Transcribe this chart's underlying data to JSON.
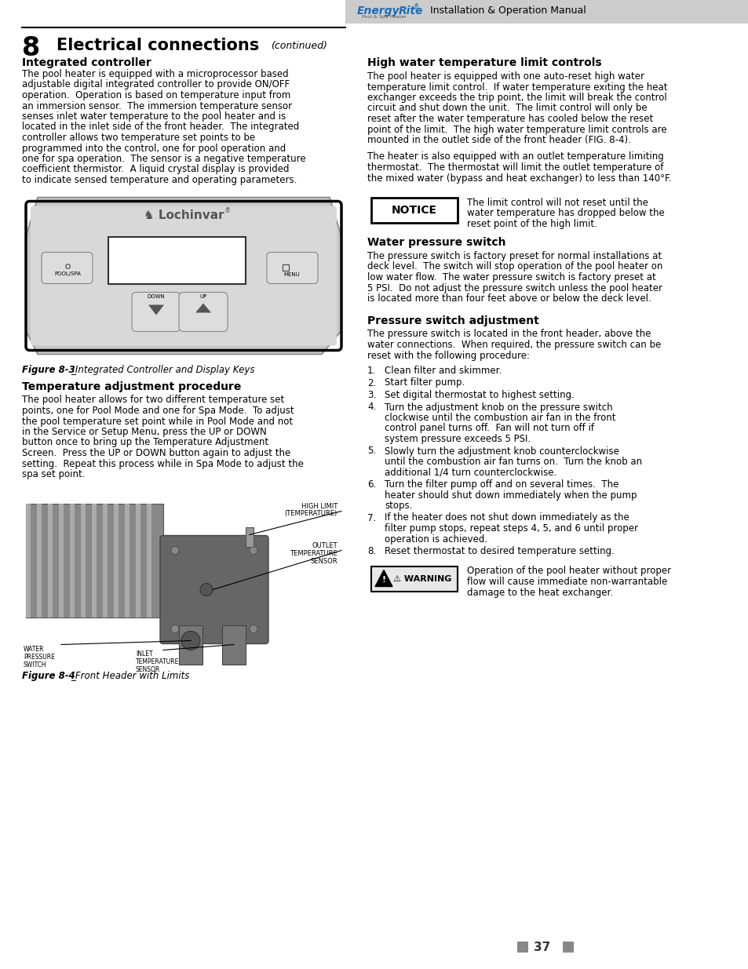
{
  "page_num": "37",
  "header_text": "Installation & Operation Manual",
  "chapter_num": "8",
  "chapter_title": "Electrical connections",
  "chapter_subtitle": "(continued)",
  "section1_title": "Integrated controller",
  "section1_body_lines": [
    "The pool heater is equipped with a microprocessor based",
    "adjustable digital integrated controller to provide ON/OFF",
    "operation.  Operation is based on temperature input from",
    "an immersion sensor.  The immersion temperature sensor",
    "senses inlet water temperature to the pool heater and is",
    "located in the inlet side of the front header.  The integrated",
    "controller allows two temperature set points to be",
    "programmed into the control, one for pool operation and",
    "one for spa operation.  The sensor is a negative temperature",
    "coefficient thermistor.  A liquid crystal display is provided",
    "to indicate sensed temperature and operating parameters."
  ],
  "fig3_caption_bold": "Figure 8-3",
  "fig3_caption_italic": "_Integrated Controller and Display Keys",
  "section2_title": "Temperature adjustment procedure",
  "section2_body_lines": [
    "The pool heater allows for two different temperature set",
    "points, one for Pool Mode and one for Spa Mode.  To adjust",
    "the pool temperature set point while in Pool Mode and not",
    "in the Service or Setup Menu, press the UP or DOWN",
    "button once to bring up the Temperature Adjustment",
    "Screen.  Press the UP or DOWN button again to adjust the",
    "setting.  Repeat this process while in Spa Mode to adjust the",
    "spa set point."
  ],
  "fig4_caption_bold": "Figure 8-4",
  "fig4_caption_italic": "_Front Header with Limits",
  "section3_title": "High water temperature limit controls",
  "section3_body1_lines": [
    "The pool heater is equipped with one auto-reset high water",
    "temperature limit control.  If water temperature exiting the heat",
    "exchanger exceeds the trip point, the limit will break the control",
    "circuit and shut down the unit.  The limit control will only be",
    "reset after the water temperature has cooled below the reset",
    "point of the limit.  The high water temperature limit controls are",
    "mounted in the outlet side of the front header (FIG. 8-4)."
  ],
  "section3_body2_lines": [
    "The heater is also equipped with an outlet temperature limiting",
    "thermostat.  The thermostat will limit the outlet temperature of",
    "the mixed water (bypass and heat exchanger) to less than 140°F."
  ],
  "notice_label": "NOTICE",
  "notice_text_lines": [
    "The limit control will not reset until the",
    "water temperature has dropped below the",
    "reset point of the high limit."
  ],
  "section4_title": "Water pressure switch",
  "section4_body_lines": [
    "The pressure switch is factory preset for normal installations at",
    "deck level.  The switch will stop operation of the pool heater on",
    "low water flow.  The water pressure switch is factory preset at",
    "5 PSI.  Do not adjust the pressure switch unless the pool heater",
    "is located more than four feet above or below the deck level."
  ],
  "section5_title": "Pressure switch adjustment",
  "section5_body_lines": [
    "The pressure switch is located in the front header, above the",
    "water connections.  When required, the pressure switch can be",
    "reset with the following procedure:"
  ],
  "steps": [
    [
      "Clean filter and skimmer."
    ],
    [
      "Start filter pump."
    ],
    [
      "Set digital thermostat to highest setting."
    ],
    [
      "Turn the adjustment knob on the pressure switch",
      "clockwise until the combustion air fan in the front",
      "control panel turns off.  Fan will not turn off if",
      "system pressure exceeds 5 PSI."
    ],
    [
      "Slowly turn the adjustment knob counterclockwise",
      "until the combustion air fan turns on.  Turn the knob an",
      "additional 1/4 turn counterclockwise."
    ],
    [
      "Turn the filter pump off and on several times.  The",
      "heater should shut down immediately when the pump",
      "stops."
    ],
    [
      "If the heater does not shut down immediately as the",
      "filter pump stops, repeat steps 4, 5, and 6 until proper",
      "operation is achieved."
    ],
    [
      "Reset thermostat to desired temperature setting."
    ]
  ],
  "warning_label": "⚠ WARNING",
  "warning_text_lines": [
    "Operation of the pool heater without proper",
    "flow will cause immediate non-warrantable",
    "damage to the heat exchanger."
  ],
  "bg_color": "#ffffff",
  "text_color": "#000000",
  "header_bg": "#cccccc",
  "accent_color": "#1a78c2",
  "gray_header": "#888888"
}
